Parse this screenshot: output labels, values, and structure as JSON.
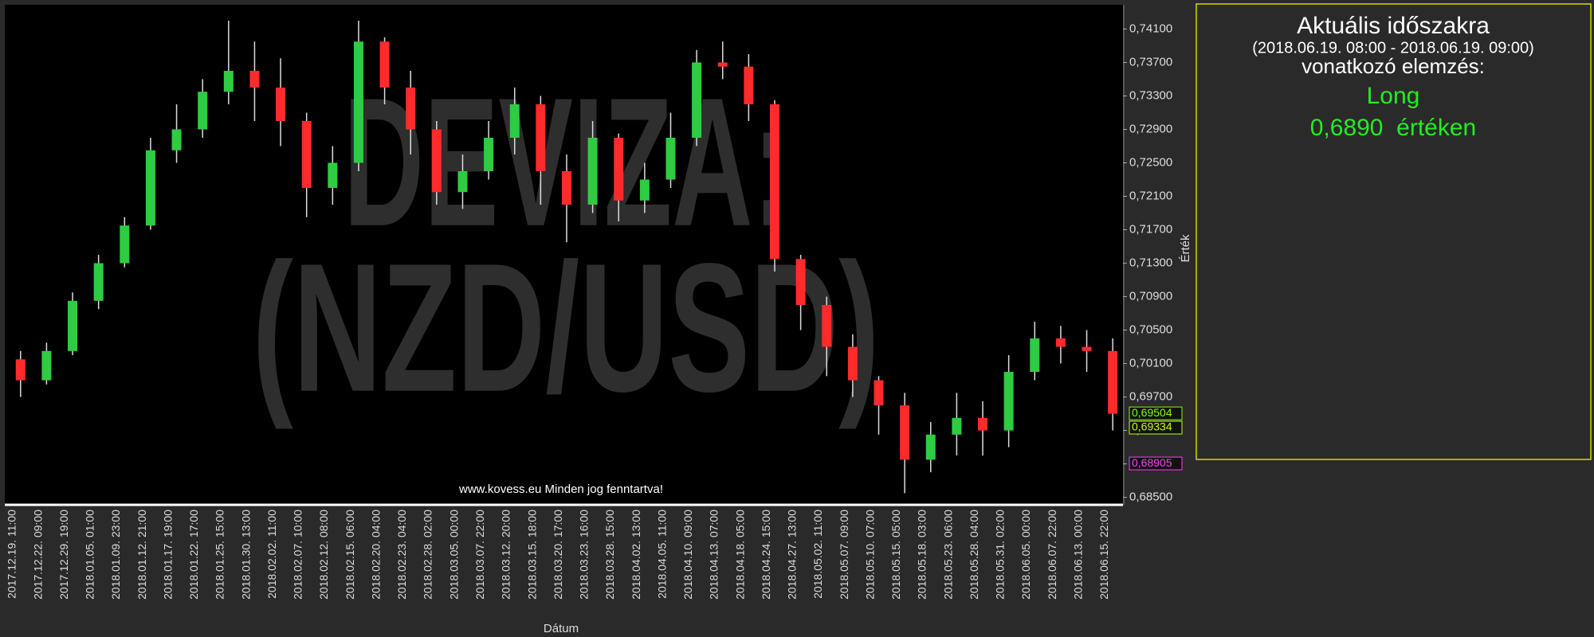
{
  "chart_data": {
    "type": "candlestick",
    "watermark": [
      "DEVIZA:",
      "(NZD/USD)"
    ],
    "footer": "www.kovess.eu Minden jog fenntartva!",
    "x_label": "Dátum",
    "y_label": "Érték",
    "up_color": "#2ecc40",
    "down_color": "#ff2a2a",
    "categories": [
      "2017.12.19. 11:00",
      "2017.12.22. 09:00",
      "2017.12.29. 19:00",
      "2018.01.05. 01:00",
      "2018.01.09. 23:00",
      "2018.01.12. 21:00",
      "2018.01.17. 19:00",
      "2018.01.22. 17:00",
      "2018.01.25. 15:00",
      "2018.01.30. 13:00",
      "2018.02.02. 11:00",
      "2018.02.07. 10:00",
      "2018.02.12. 08:00",
      "2018.02.15. 06:00",
      "2018.02.20. 04:00",
      "2018.02.23. 04:00",
      "2018.02.28. 02:00",
      "2018.03.05. 00:00",
      "2018.03.07. 22:00",
      "2018.03.12. 20:00",
      "2018.03.15. 18:00",
      "2018.03.20. 17:00",
      "2018.03.23. 16:00",
      "2018.03.28. 15:00",
      "2018.04.02. 13:00",
      "2018.04.05. 11:00",
      "2018.04.10. 09:00",
      "2018.04.13. 07:00",
      "2018.04.18. 05:00",
      "2018.04.24. 15:00",
      "2018.04.27. 13:00",
      "2018.05.02. 11:00",
      "2018.05.07. 09:00",
      "2018.05.10. 07:00",
      "2018.05.15. 05:00",
      "2018.05.18. 03:00",
      "2018.05.23. 06:00",
      "2018.05.28. 04:00",
      "2018.05.31. 02:00",
      "2018.06.05. 00:00",
      "2018.06.07. 22:00",
      "2018.06.13. 00:00",
      "2018.06.15. 22:00"
    ],
    "open": [
      0.7015,
      0.699,
      0.7025,
      0.7085,
      0.713,
      0.7175,
      0.7265,
      0.729,
      0.7335,
      0.736,
      0.734,
      0.73,
      0.722,
      0.725,
      0.7395,
      0.734,
      0.729,
      0.7215,
      0.724,
      0.728,
      0.732,
      0.724,
      0.72,
      0.728,
      0.7205,
      0.723,
      0.728,
      0.737,
      0.7365,
      0.732,
      0.7135,
      0.708,
      0.703,
      0.699,
      0.696,
      0.6895,
      0.6925,
      0.6945,
      0.693,
      0.7,
      0.704,
      0.703,
      0.7025
    ],
    "high": [
      0.7025,
      0.7035,
      0.7095,
      0.714,
      0.7185,
      0.728,
      0.732,
      0.735,
      0.742,
      0.7395,
      0.7375,
      0.731,
      0.727,
      0.742,
      0.74,
      0.736,
      0.73,
      0.726,
      0.73,
      0.734,
      0.733,
      0.726,
      0.73,
      0.7285,
      0.725,
      0.731,
      0.7385,
      0.7395,
      0.738,
      0.7325,
      0.714,
      0.709,
      0.7045,
      0.6995,
      0.6975,
      0.694,
      0.6975,
      0.6965,
      0.702,
      0.706,
      0.7055,
      0.705,
      0.704
    ],
    "low": [
      0.697,
      0.6985,
      0.702,
      0.7075,
      0.7125,
      0.717,
      0.725,
      0.728,
      0.732,
      0.73,
      0.727,
      0.7185,
      0.72,
      0.724,
      0.732,
      0.726,
      0.72,
      0.7195,
      0.723,
      0.726,
      0.72,
      0.7155,
      0.719,
      0.718,
      0.719,
      0.722,
      0.727,
      0.735,
      0.73,
      0.712,
      0.705,
      0.6995,
      0.697,
      0.6925,
      0.6855,
      0.688,
      0.69,
      0.69,
      0.691,
      0.699,
      0.701,
      0.7,
      0.693
    ],
    "close": [
      0.699,
      0.7025,
      0.7085,
      0.713,
      0.7175,
      0.7265,
      0.729,
      0.7335,
      0.736,
      0.734,
      0.73,
      0.722,
      0.725,
      0.7395,
      0.734,
      0.729,
      0.7215,
      0.724,
      0.728,
      0.732,
      0.724,
      0.72,
      0.728,
      0.7205,
      0.723,
      0.728,
      0.737,
      0.7365,
      0.732,
      0.7135,
      0.708,
      0.703,
      0.699,
      0.696,
      0.6895,
      0.6925,
      0.6945,
      0.693,
      0.7,
      0.704,
      0.703,
      0.7025,
      0.695
    ],
    "ylim": [
      0.6842,
      0.7439
    ],
    "yticks": [
      {
        "value": 0.685,
        "label": "0,68500"
      },
      {
        "value": 0.689,
        "label": "0,68900"
      },
      {
        "value": 0.693,
        "label": "0,69300"
      },
      {
        "value": 0.697,
        "label": "0,69700"
      },
      {
        "value": 0.701,
        "label": "0,70100"
      },
      {
        "value": 0.705,
        "label": "0,70500"
      },
      {
        "value": 0.709,
        "label": "0,70900"
      },
      {
        "value": 0.713,
        "label": "0,71300"
      },
      {
        "value": 0.717,
        "label": "0,71700"
      },
      {
        "value": 0.721,
        "label": "0,72100"
      },
      {
        "value": 0.725,
        "label": "0,72500"
      },
      {
        "value": 0.729,
        "label": "0,72900"
      },
      {
        "value": 0.733,
        "label": "0,73300"
      },
      {
        "value": 0.737,
        "label": "0,73700"
      },
      {
        "value": 0.741,
        "label": "0,74100"
      }
    ],
    "price_markers": [
      {
        "value": 0.69504,
        "label": "0,69504",
        "color": "#7fff00"
      },
      {
        "value": 0.69334,
        "label": "0,69334",
        "color": "#c8ff00"
      },
      {
        "value": 0.68905,
        "label": "0,68905",
        "color": "#ff40ff"
      }
    ]
  },
  "panel": {
    "title": "Aktuális időszakra",
    "period": "(2018.06.19. 08:00 - 2018.06.19. 09:00)",
    "subtitle": "vonatkozó elemzés:",
    "signal": "Long",
    "price": "0,6890",
    "price_suffix": "értéken"
  }
}
